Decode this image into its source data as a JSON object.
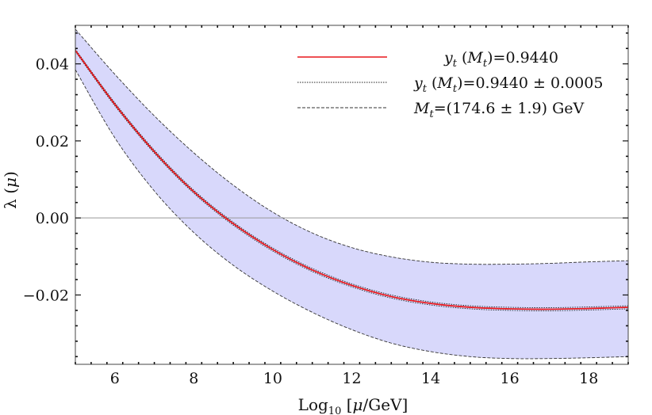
{
  "chart_data": {
    "type": "line",
    "xlabel": "Log10 [μ/GeV]",
    "ylabel": "λ (μ)",
    "xlim": [
      5,
      19
    ],
    "ylim": [
      -0.038,
      0.05
    ],
    "x_ticks": [
      6,
      8,
      10,
      12,
      14,
      16,
      18
    ],
    "x_tick_labels": [
      "6",
      "8",
      "10",
      "12",
      "14",
      "16",
      "18"
    ],
    "y_ticks": [
      0.04,
      0.02,
      0.0,
      -0.02
    ],
    "y_tick_labels": [
      "0.04",
      "0.02",
      "0.00",
      "−0.02"
    ],
    "grid": false,
    "zero_line": true,
    "legend_position": "top-right",
    "legend": [
      {
        "label": "y_t (M_t)=0.9440",
        "style": "solid",
        "color": "#e8161b"
      },
      {
        "label": "y_t (M_t)=0.9440 ± 0.0005",
        "style": "dotted",
        "color": "#222222"
      },
      {
        "label": "M_t=(174.6 ± 1.9) GeV",
        "style": "dashed",
        "color": "#333333"
      }
    ],
    "band_fill_color": "#d8d8fb",
    "x": [
      5,
      6,
      7,
      8,
      9,
      10,
      11,
      12,
      13,
      14,
      15,
      16,
      17,
      18,
      19
    ],
    "series": [
      {
        "name": "y_t (M_t)=0.9440",
        "role": "central",
        "values": [
          0.0435,
          0.0295,
          0.0172,
          0.0068,
          -0.0015,
          -0.0082,
          -0.0135,
          -0.0175,
          -0.0204,
          -0.0222,
          -0.0232,
          -0.0236,
          -0.0237,
          -0.0235,
          -0.0232
        ]
      },
      {
        "name": "y_t (M_t)=0.9440 + 0.0005",
        "role": "yt-upper",
        "values": [
          0.0438,
          0.0299,
          0.0176,
          0.0072,
          -0.0011,
          -0.0078,
          -0.0131,
          -0.0171,
          -0.02,
          -0.0218,
          -0.0228,
          -0.0232,
          -0.0233,
          -0.0231,
          -0.0228
        ]
      },
      {
        "name": "y_t (M_t)=0.9440 - 0.0005",
        "role": "yt-lower",
        "values": [
          0.0432,
          0.0291,
          0.0168,
          0.0064,
          -0.0019,
          -0.0086,
          -0.0139,
          -0.0179,
          -0.0208,
          -0.0226,
          -0.0236,
          -0.024,
          -0.0241,
          -0.0239,
          -0.0236
        ]
      },
      {
        "name": "M_t upper",
        "role": "mt-upper",
        "values": [
          0.049,
          0.0373,
          0.0265,
          0.0169,
          0.0085,
          0.0015,
          -0.0039,
          -0.0077,
          -0.0101,
          -0.0115,
          -0.012,
          -0.012,
          -0.0118,
          -0.0114,
          -0.0111
        ]
      },
      {
        "name": "M_t lower",
        "role": "mt-lower",
        "values": [
          0.0385,
          0.0208,
          0.007,
          -0.0038,
          -0.0123,
          -0.019,
          -0.0245,
          -0.029,
          -0.0325,
          -0.0347,
          -0.036,
          -0.0365,
          -0.0365,
          -0.0363,
          -0.036
        ]
      }
    ]
  }
}
